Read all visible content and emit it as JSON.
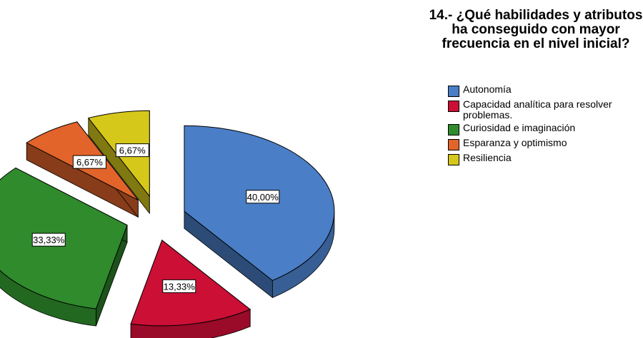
{
  "chart_data": {
    "type": "pie",
    "title": "14.- ¿Qué habilidades y atributos ha conseguido con mayor frecuencia en el nivel inicial?",
    "categories": [
      "Autonomía",
      "Capacidad analítica para resolver problemas.",
      "Curiosidad e imaginación",
      "Esparanza y optimismo",
      "Resiliencia"
    ],
    "values": [
      40.0,
      13.33,
      33.33,
      6.67,
      6.67
    ],
    "labels": [
      "40,00%",
      "13,33%",
      "33,33%",
      "6,67%",
      "6,67%"
    ],
    "colors": [
      "#4a7ec6",
      "#cc0f35",
      "#2f8b2c",
      "#e2642a",
      "#d6c81a"
    ],
    "legend_position": "right",
    "exploded": true,
    "three_d": true
  },
  "legend": {
    "items": [
      {
        "label": "Autonomía",
        "color": "#4a7ec6"
      },
      {
        "label": "Capacidad analítica para resolver problemas.",
        "color": "#cc0f35"
      },
      {
        "label": "Curiosidad e imaginación",
        "color": "#2f8b2c"
      },
      {
        "label": "Esparanza y optimismo",
        "color": "#e2642a"
      },
      {
        "label": "Resiliencia",
        "color": "#d6c81a"
      }
    ]
  }
}
